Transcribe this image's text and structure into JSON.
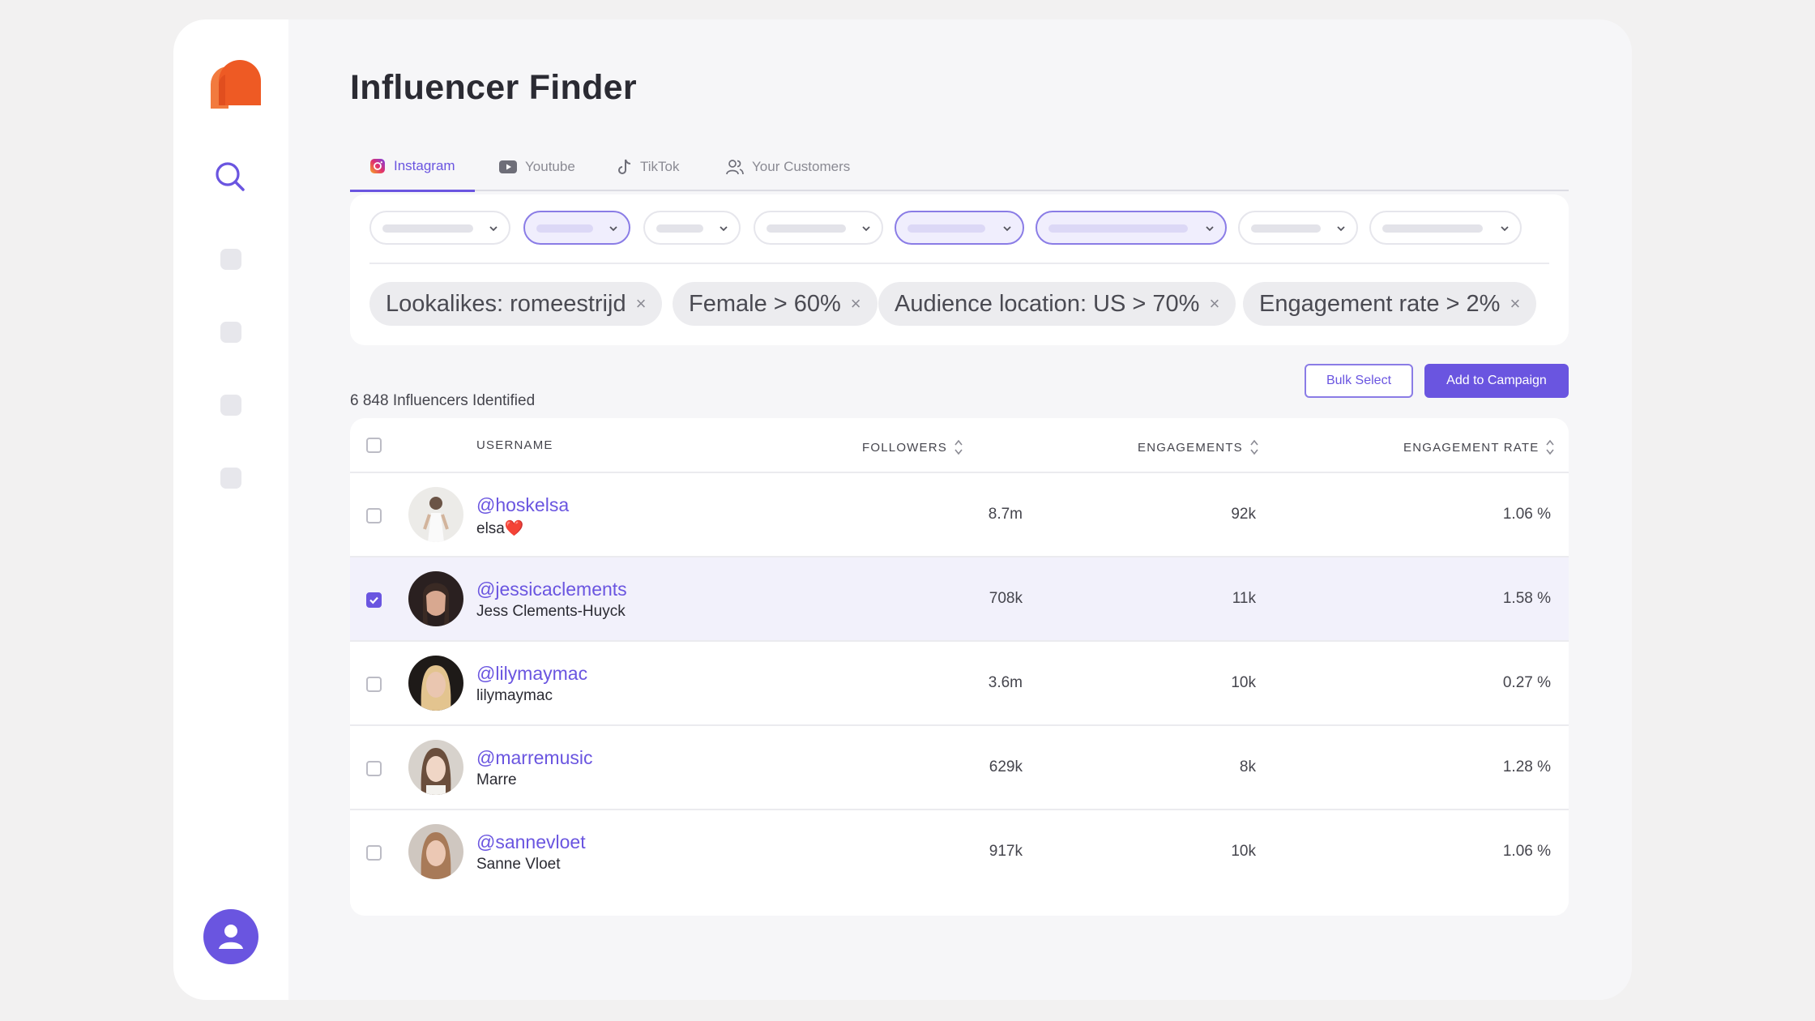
{
  "app": {
    "title": "Influencer Finder",
    "accent_color": "#6a55e0",
    "logo_color": "#ee5a24"
  },
  "tabs": [
    {
      "label": "Instagram",
      "icon": "instagram-icon",
      "active": true
    },
    {
      "label": "Youtube",
      "icon": "youtube-icon",
      "active": false
    },
    {
      "label": "TikTok",
      "icon": "tiktok-icon",
      "active": false
    },
    {
      "label": "Your Customers",
      "icon": "users-icon",
      "active": false
    }
  ],
  "filters": {
    "chips": [
      {
        "label": "Lookalikes: romeestrijd",
        "remove": "×"
      },
      {
        "label": "Female > 60%",
        "remove": "×"
      },
      {
        "label": "Audience location: US > 70%",
        "remove": "×"
      },
      {
        "label": "Engagement rate > 2%",
        "remove": "×"
      }
    ]
  },
  "results": {
    "count_text": "6 848 Influencers Identified",
    "bulk_select_label": "Bulk Select",
    "add_to_campaign_label": "Add to Campaign"
  },
  "table": {
    "headers": {
      "username": "USERNAME",
      "followers": "FOLLOWERS",
      "engagements": "ENGAGEMENTS",
      "engagement_rate": "ENGAGEMENT RATE"
    },
    "rows": [
      {
        "handle": "@hoskelsa",
        "name": "elsa❤️",
        "followers": "8.7m",
        "engagements": "92k",
        "rate": "1.06 %",
        "selected": false
      },
      {
        "handle": "@jessicaclements",
        "name": "Jess Clements-Huyck",
        "followers": "708k",
        "engagements": "11k",
        "rate": "1.58 %",
        "selected": true
      },
      {
        "handle": "@lilymaymac",
        "name": "lilymaymac",
        "followers": "3.6m",
        "engagements": "10k",
        "rate": "0.27 %",
        "selected": false
      },
      {
        "handle": "@marremusic",
        "name": "Marre",
        "followers": "629k",
        "engagements": "8k",
        "rate": "1.28 %",
        "selected": false
      },
      {
        "handle": "@sannevloet",
        "name": "Sanne Vloet",
        "followers": "917k",
        "engagements": "10k",
        "rate": "1.06 %",
        "selected": false
      }
    ]
  }
}
